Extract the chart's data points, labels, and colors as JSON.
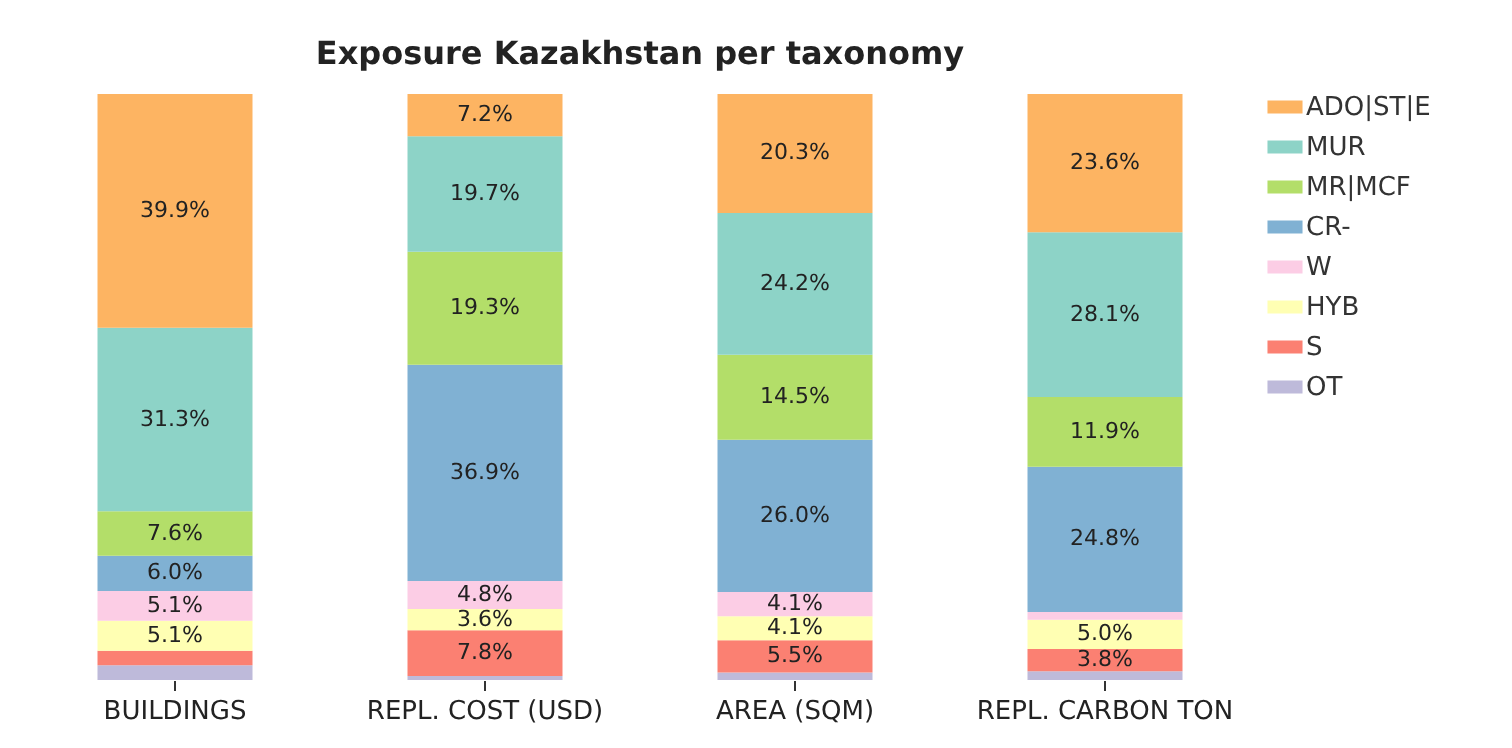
{
  "chart_data": {
    "type": "bar",
    "title": "Exposure Kazakhstan per taxonomy",
    "categories": [
      "BUILDINGS",
      "REPL. COST (USD)",
      "AREA (SQM)",
      "REPL. CARBON TON"
    ],
    "stacked": true,
    "legend": "right",
    "grid": false,
    "series": [
      {
        "name": "OT",
        "color": "#bebada",
        "values": [
          2.5,
          0.7,
          1.3,
          1.5
        ],
        "value_labels": [
          null,
          null,
          null,
          null
        ]
      },
      {
        "name": "S",
        "color": "#fb8072",
        "values": [
          2.5,
          7.8,
          5.5,
          3.8
        ],
        "value_labels": [
          null,
          "7.8%",
          "5.5%",
          "3.8%"
        ]
      },
      {
        "name": "HYB",
        "color": "#ffffb3",
        "values": [
          5.1,
          3.6,
          4.1,
          5.0
        ],
        "value_labels": [
          "5.1%",
          "3.6%",
          "4.1%",
          "5.0%"
        ]
      },
      {
        "name": "W",
        "color": "#fccde5",
        "values": [
          5.1,
          4.8,
          4.1,
          1.3
        ],
        "value_labels": [
          "5.1%",
          "4.8%",
          "4.1%",
          null
        ]
      },
      {
        "name": "CR-",
        "color": "#80b1d3",
        "values": [
          6.0,
          36.9,
          26.0,
          24.8
        ],
        "value_labels": [
          "6.0%",
          "36.9%",
          "26.0%",
          "24.8%"
        ]
      },
      {
        "name": "MR|MCF",
        "color": "#b3de69",
        "values": [
          7.6,
          19.3,
          14.5,
          11.9
        ],
        "value_labels": [
          "7.6%",
          "19.3%",
          "14.5%",
          "11.9%"
        ]
      },
      {
        "name": "MUR",
        "color": "#8dd3c7",
        "values": [
          31.3,
          19.7,
          24.2,
          28.1
        ],
        "value_labels": [
          "31.3%",
          "19.7%",
          "24.2%",
          "28.1%"
        ]
      },
      {
        "name": "ADO|ST|E",
        "color": "#fdb462",
        "values": [
          39.9,
          7.2,
          20.3,
          23.6
        ],
        "value_labels": [
          "39.9%",
          "7.2%",
          "20.3%",
          "23.6%"
        ]
      }
    ]
  }
}
